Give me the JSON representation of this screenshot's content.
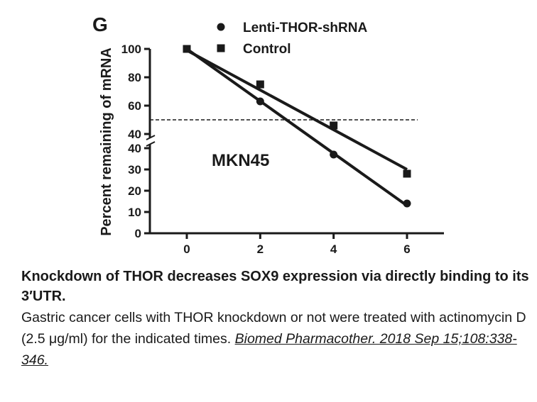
{
  "panel_label": "G",
  "chart_data": {
    "type": "scatter",
    "title": "",
    "panel_label": "G",
    "annotation": "MKN45",
    "xlabel": "",
    "ylabel": "Percent remaining of mRNA",
    "x_ticks": [
      "0",
      "2",
      "4",
      "6"
    ],
    "y_ticks": [
      "0",
      "10",
      "20",
      "30",
      "40",
      "40",
      "60",
      "80",
      "100"
    ],
    "xlim": [
      0,
      6
    ],
    "y_axis_break": {
      "lower": [
        0,
        40
      ],
      "upper": [
        40,
        100
      ]
    },
    "reference_line": {
      "y": 50,
      "style": "dashed"
    },
    "legend_position": "top-right",
    "series": [
      {
        "name": "Lenti-THOR-shRNA",
        "marker": "circle",
        "x": [
          0,
          2,
          4,
          6
        ],
        "y": [
          100,
          63,
          37,
          14
        ],
        "fit": [
          [
            0,
            100
          ],
          [
            6,
            13
          ]
        ]
      },
      {
        "name": "Control",
        "marker": "square",
        "x": [
          0,
          2,
          4,
          6
        ],
        "y": [
          100,
          75,
          46,
          28
        ],
        "fit": [
          [
            0,
            99
          ],
          [
            6,
            30
          ]
        ]
      }
    ],
    "colors": {
      "ink": "#1a1a1a"
    }
  },
  "caption": {
    "title": "Knockdown of THOR decreases SOX9 expression via directly binding to its 3′UTR.",
    "body": "Gastric cancer cells with THOR knockdown or not were treated with actinomycin D (2.5 μg/ml) for the indicated times.",
    "citation": "Biomed Pharmacother. 2018 Sep 15;108:338-346."
  }
}
